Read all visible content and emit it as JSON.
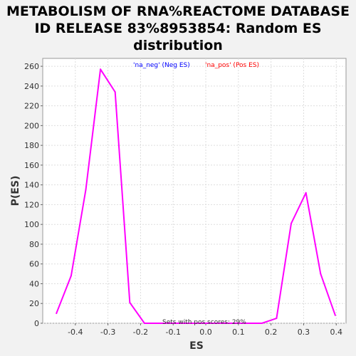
{
  "title_lines": [
    "METABOLISM OF RNA%REACTOME DATABASE",
    "ID RELEASE 83%8953854: Random ES",
    "distribution"
  ],
  "chart_data": {
    "type": "line",
    "title": "METABOLISM OF RNA%REACTOME DATABASE ID RELEASE 83%8953854: Random ES distribution",
    "xlabel": "ES",
    "ylabel": "P(ES)",
    "xlim": [
      -0.5,
      0.43
    ],
    "ylim": [
      0,
      268
    ],
    "xticks": [
      -0.4,
      -0.3,
      -0.2,
      -0.1,
      0.0,
      0.1,
      0.2,
      0.3,
      0.4
    ],
    "xtick_labels": [
      "-0.4",
      "-0.3",
      "-0.2",
      "-0.1",
      "0.0",
      "0.1",
      "0.2",
      "0.3",
      "0.4"
    ],
    "yticks": [
      0,
      20,
      40,
      60,
      80,
      100,
      120,
      140,
      160,
      180,
      200,
      220,
      240,
      260
    ],
    "ytick_labels": [
      "0",
      "20",
      "40",
      "60",
      "80",
      "100",
      "120",
      "140",
      "160",
      "180",
      "200",
      "220",
      "240",
      "260"
    ],
    "grid": true,
    "legend": [
      {
        "label": "'na_neg' (Neg ES)",
        "color": "#0000ff"
      },
      {
        "label": "'na_pos' (Pos ES)",
        "color": "#ff0000"
      }
    ],
    "legend_position": "top-center",
    "annotation": "Sets with pos scores: 29%",
    "series": [
      {
        "color": "#ff00ff",
        "x": [
          -0.458,
          -0.413,
          -0.368,
          -0.323,
          -0.278,
          -0.233,
          -0.188,
          -0.143,
          -0.098,
          -0.053,
          -0.008,
          0.037,
          0.082,
          0.127,
          0.172,
          0.217,
          0.262,
          0.307,
          0.352,
          0.397
        ],
        "y": [
          10,
          48,
          135,
          257,
          234,
          21,
          0,
          0,
          0,
          0,
          0,
          0,
          0,
          0,
          0,
          5,
          101,
          132,
          50,
          8
        ]
      }
    ]
  }
}
